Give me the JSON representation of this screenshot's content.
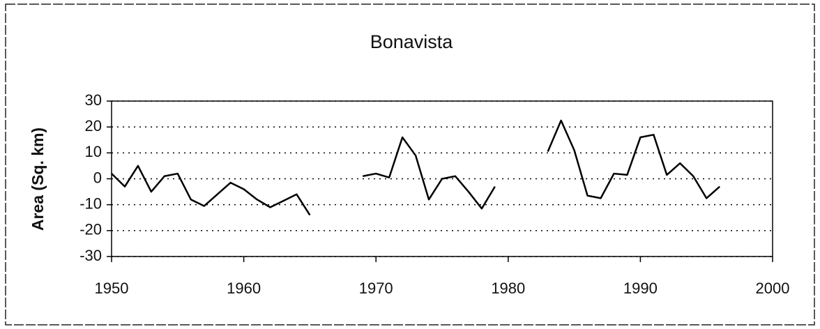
{
  "chart_data": {
    "type": "line",
    "title": "Bonavista",
    "y_label": "Area (Sq. km)",
    "x": [
      1950,
      1951,
      1952,
      1953,
      1954,
      1955,
      1956,
      1957,
      1958,
      1959,
      1960,
      1961,
      1962,
      1963,
      1964,
      1965,
      1966,
      1967,
      1968,
      1969,
      1970,
      1971,
      1972,
      1973,
      1974,
      1975,
      1976,
      1977,
      1978,
      1979,
      1980,
      1981,
      1982,
      1983,
      1984,
      1985,
      1986,
      1987,
      1988,
      1989,
      1990,
      1991,
      1992,
      1993,
      1994,
      1995,
      1996
    ],
    "series": [
      {
        "color": "#000000",
        "values": [
          2,
          -3,
          5,
          -5,
          1,
          2,
          -8,
          -10.5,
          -6,
          -1.5,
          -4,
          -8,
          -11,
          -8.5,
          -6,
          -14,
          null,
          null,
          null,
          1,
          2,
          0.5,
          16,
          9,
          -8,
          0,
          1,
          -5,
          -11.5,
          -3,
          null,
          null,
          null,
          10.5,
          22.5,
          11,
          -6.5,
          -7.5,
          2,
          1.5,
          16,
          17,
          1.5,
          6,
          1,
          -7.5,
          -3
        ]
      }
    ],
    "xlim": [
      1950,
      2000
    ],
    "xticks": [
      1950,
      1960,
      1970,
      1980,
      1990,
      2000
    ],
    "ylim": [
      -30,
      30
    ],
    "yticks": [
      -30,
      -20,
      -10,
      0,
      10,
      20,
      30
    ],
    "grid": true
  }
}
